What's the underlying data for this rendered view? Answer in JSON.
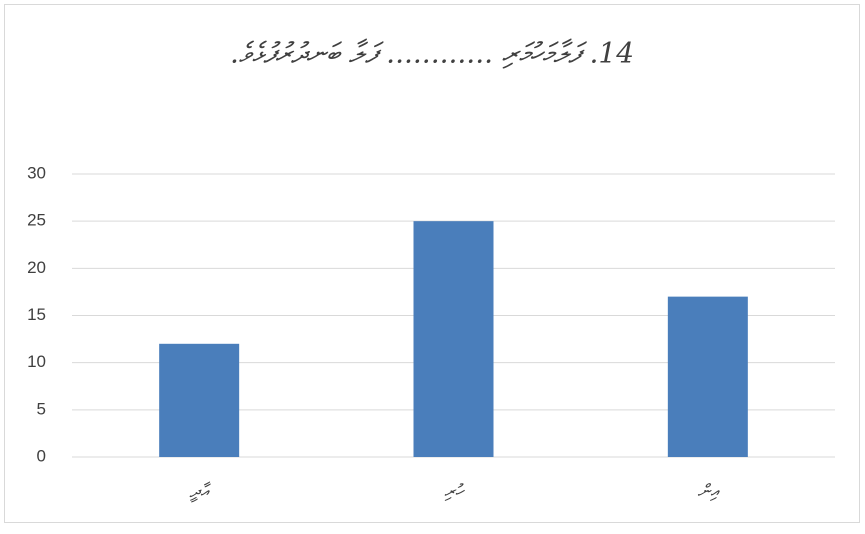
{
  "chart_data": {
    "type": "bar",
    "title": "14. ފަލާމަހުމަރި ............ ފަލާ ބަނދުރުފުޅެވެ.",
    "categories": [
      "އާދީ",
      "ހުރި",
      "އިން"
    ],
    "values": [
      12,
      25,
      17
    ],
    "color": "#4a7ebb",
    "ylim": [
      0,
      30
    ],
    "yticks": [
      0,
      5,
      10,
      15,
      20,
      25,
      30
    ],
    "grid": true
  }
}
